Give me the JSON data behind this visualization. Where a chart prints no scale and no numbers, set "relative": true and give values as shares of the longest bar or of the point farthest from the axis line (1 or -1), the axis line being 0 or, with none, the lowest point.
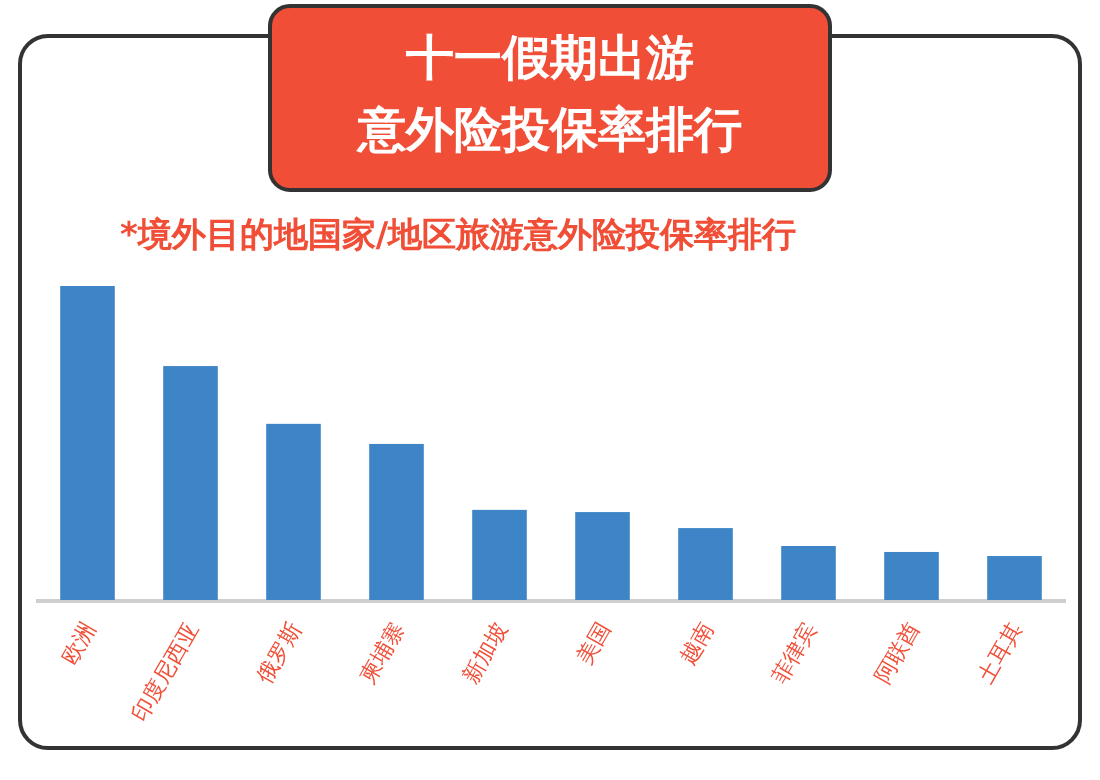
{
  "chart_data": {
    "type": "bar",
    "title": "十一假期出游意外险投保率排行",
    "subtitle": "*境外目的地国家/地区旅游意外险投保率排行",
    "categories": [
      "欧洲",
      "印度尼西亚",
      "俄罗斯",
      "柬埔寨",
      "新加坡",
      "美国",
      "越南",
      "菲律宾",
      "阿联酋",
      "土耳其"
    ],
    "values": [
      1,
      0.745,
      0.561,
      0.497,
      0.287,
      0.28,
      0.229,
      0.172,
      0.153,
      0.14
    ],
    "color": "#3d85c6",
    "relative": true
  }
}
